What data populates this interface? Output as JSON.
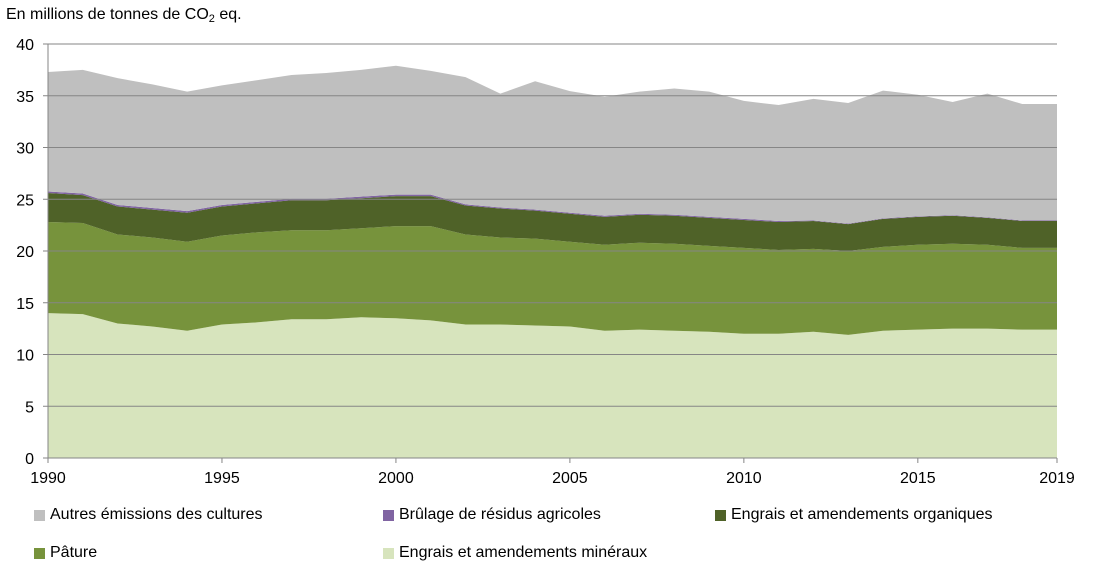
{
  "chart_data": {
    "type": "area",
    "stacked": true,
    "unit_label": {
      "prefix": "En millions de tonnes de CO",
      "sub": "2",
      "suffix": " eq."
    },
    "x": [
      1990,
      1991,
      1992,
      1993,
      1994,
      1995,
      1996,
      1997,
      1998,
      1999,
      2000,
      2001,
      2002,
      2003,
      2004,
      2005,
      2006,
      2007,
      2008,
      2009,
      2010,
      2011,
      2012,
      2013,
      2014,
      2015,
      2016,
      2017,
      2018,
      2019
    ],
    "xticks": [
      "1990",
      "1995",
      "2000",
      "2005",
      "2010",
      "2015",
      "2019"
    ],
    "xtick_values": [
      1990,
      1995,
      2000,
      2005,
      2010,
      2015,
      2019
    ],
    "yticks": [
      "0",
      "5",
      "10",
      "15",
      "20",
      "25",
      "30",
      "35",
      "40"
    ],
    "ylim": [
      0,
      40
    ],
    "gridlines": true,
    "series": [
      {
        "name": "Engrais et amendements minéraux",
        "color": "#d7e4bd",
        "values": [
          14.0,
          13.9,
          13.0,
          12.7,
          12.3,
          12.9,
          13.1,
          13.4,
          13.4,
          13.6,
          13.5,
          13.3,
          12.9,
          12.9,
          12.8,
          12.7,
          12.3,
          12.4,
          12.3,
          12.2,
          12.0,
          12.0,
          12.2,
          11.9,
          12.3,
          12.4,
          12.5,
          12.5,
          12.4,
          12.4
        ]
      },
      {
        "name": "Pâture",
        "color": "#77933c",
        "values": [
          8.8,
          8.8,
          8.6,
          8.6,
          8.6,
          8.6,
          8.7,
          8.6,
          8.6,
          8.6,
          8.9,
          9.1,
          8.7,
          8.4,
          8.4,
          8.2,
          8.3,
          8.4,
          8.4,
          8.3,
          8.3,
          8.1,
          8.0,
          8.1,
          8.1,
          8.2,
          8.2,
          8.1,
          7.9,
          7.9
        ]
      },
      {
        "name": "Engrais et amendements organiques",
        "color": "#4f6228",
        "values": [
          2.8,
          2.7,
          2.7,
          2.7,
          2.8,
          2.8,
          2.8,
          2.9,
          2.9,
          2.9,
          2.9,
          2.9,
          2.8,
          2.8,
          2.7,
          2.7,
          2.7,
          2.7,
          2.7,
          2.7,
          2.7,
          2.7,
          2.7,
          2.6,
          2.7,
          2.7,
          2.7,
          2.6,
          2.6,
          2.6
        ]
      },
      {
        "name": "Brûlage de résidus agricoles",
        "color": "#8064a2",
        "values": [
          0.15,
          0.15,
          0.15,
          0.15,
          0.15,
          0.15,
          0.15,
          0.15,
          0.15,
          0.15,
          0.15,
          0.15,
          0.1,
          0.1,
          0.1,
          0.1,
          0.1,
          0.1,
          0.1,
          0.1,
          0.1,
          0.1,
          0.05,
          0.05,
          0.05,
          0.05,
          0.05,
          0.05,
          0.05,
          0.05
        ]
      },
      {
        "name": "Autres émissions des cultures",
        "color": "#bfbfbf",
        "values": [
          11.55,
          11.95,
          12.25,
          11.95,
          11.55,
          11.55,
          11.75,
          11.95,
          12.15,
          12.25,
          12.45,
          11.95,
          12.3,
          11.0,
          12.4,
          11.75,
          11.5,
          11.8,
          12.2,
          12.1,
          11.4,
          11.2,
          11.75,
          11.65,
          12.35,
          11.75,
          10.95,
          11.95,
          11.25,
          11.25
        ]
      }
    ],
    "legend": {
      "placement": "bottom",
      "rows": [
        [
          "Autres émissions des cultures",
          "Brûlage de résidus agricoles",
          "Engrais et amendements organiques"
        ],
        [
          "Pâture",
          "Engrais et amendements minéraux"
        ]
      ]
    }
  }
}
